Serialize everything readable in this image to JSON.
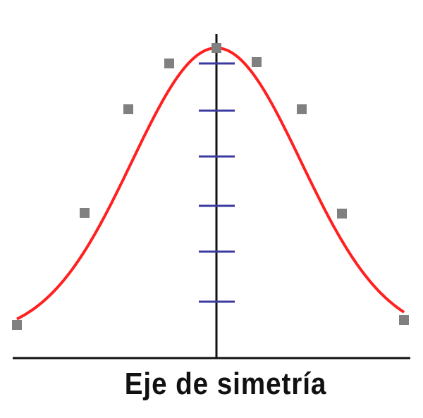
{
  "axis_label": "Eje de simetría",
  "colors": {
    "curve": "#ff2020",
    "points": "#808080",
    "axis": "#111111",
    "ticks": "#3a3aa0"
  },
  "tick_count": 6,
  "point_count": 9
}
